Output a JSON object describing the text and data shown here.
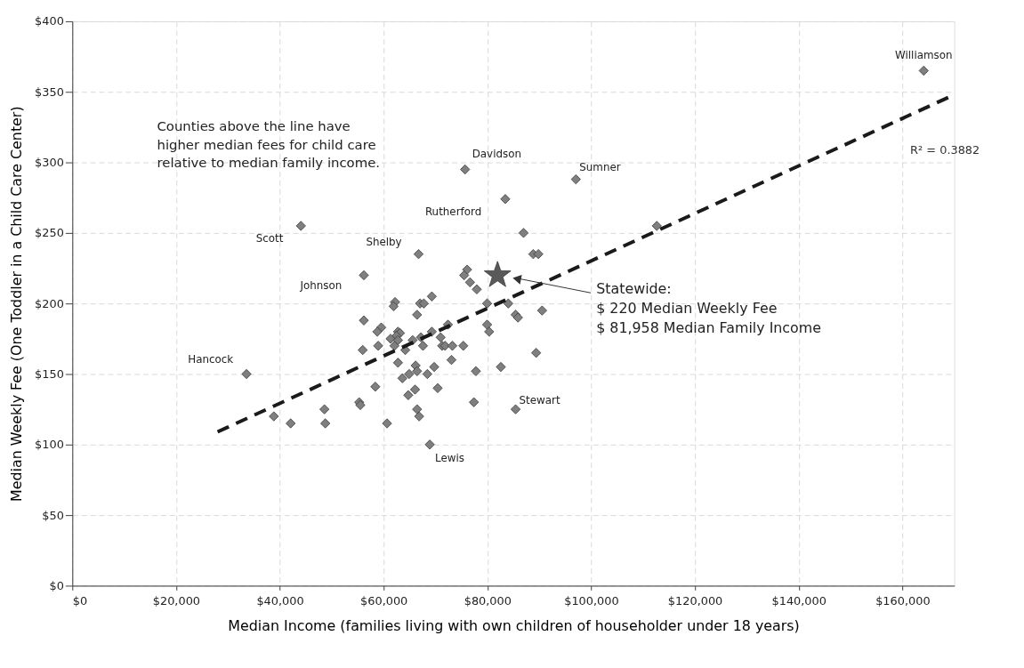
{
  "chart_data": {
    "type": "scatter",
    "xlabel": "Median Income (families living with own children of householder under 18 years)",
    "ylabel": "Median Weekly Fee  (One Toddler in a Child Care Center)",
    "xlim": [
      0,
      170000
    ],
    "ylim": [
      0,
      400
    ],
    "xticks": [
      {
        "value": 0,
        "label": "$0"
      },
      {
        "value": 20000,
        "label": "$20,000"
      },
      {
        "value": 40000,
        "label": "$40,000"
      },
      {
        "value": 60000,
        "label": "$60,000"
      },
      {
        "value": 80000,
        "label": "$80,000"
      },
      {
        "value": 100000,
        "label": "$100,000"
      },
      {
        "value": 120000,
        "label": "$120,000"
      },
      {
        "value": 140000,
        "label": "$140,000"
      },
      {
        "value": 160000,
        "label": "$160,000"
      }
    ],
    "yticks": [
      {
        "value": 0,
        "label": "$0"
      },
      {
        "value": 50,
        "label": "$50"
      },
      {
        "value": 100,
        "label": "$100"
      },
      {
        "value": 150,
        "label": "$150"
      },
      {
        "value": 200,
        "label": "$200"
      },
      {
        "value": 250,
        "label": "$250"
      },
      {
        "value": 300,
        "label": "$300"
      },
      {
        "value": 350,
        "label": "$350"
      },
      {
        "value": 400,
        "label": "$400"
      }
    ],
    "grid": true,
    "series": [
      {
        "type": "scatter",
        "marker": "diamond",
        "color": "#7f7f7f",
        "x": [
          164100,
          75700,
          97060,
          83450,
          44060,
          86970,
          66740,
          88840,
          89830,
          56190,
          76090,
          75520,
          76650,
          77960,
          79950,
          84030,
          85440,
          85900,
          62200,
          61920,
          67020,
          67750,
          69290,
          66450,
          56190,
          79950,
          80340,
          59540,
          58790,
          72400,
          69290,
          62770,
          63160,
          62480,
          61340,
          62770,
          70990,
          65600,
          67190,
          71280,
          71840,
          73250,
          75360,
          67590,
          58960,
          55970,
          62090,
          64180,
          89400,
          73080,
          62770,
          82600,
          69750,
          66170,
          66450,
          64920,
          63620,
          68430,
          77790,
          33570,
          58400,
          70420,
          66060,
          64750,
          55290,
          55510,
          77400,
          85440,
          66450,
          66850,
          48590,
          38840,
          42080,
          48760,
          60660,
          68900,
          112650,
          90550
        ],
        "values": [
          365,
          295,
          288,
          274,
          255,
          250,
          235,
          235,
          235,
          220,
          224,
          220,
          215,
          210,
          200,
          200,
          192,
          190,
          201,
          198,
          200,
          200,
          205,
          192,
          188,
          185,
          180,
          183,
          180,
          185,
          180,
          180,
          179,
          177,
          175,
          174,
          176,
          174,
          176,
          170,
          170,
          170,
          170,
          170,
          170,
          167,
          170,
          167,
          165,
          160,
          158,
          155,
          155,
          156,
          152,
          150,
          147,
          150,
          152,
          150,
          141,
          140,
          139,
          135,
          130,
          128,
          130,
          125,
          125,
          120,
          125,
          120,
          115,
          115,
          115,
          100,
          255,
          195
        ]
      },
      {
        "type": "scatter",
        "marker": "star",
        "color": "#595959",
        "x": [
          81958
        ],
        "values": [
          220
        ]
      },
      {
        "type": "line",
        "line_style": "dashed",
        "color": "#1a1a1a",
        "x": [
          28000,
          170000
        ],
        "values": [
          109,
          348
        ]
      }
    ],
    "annotations": [
      {
        "text": "Williamson",
        "x": 164100,
        "y": 365
      },
      {
        "text": "Davidson",
        "x": 75700,
        "y": 295
      },
      {
        "text": "Sumner",
        "x": 97060,
        "y": 288
      },
      {
        "text": "Rutherford",
        "x": 83450,
        "y": 274
      },
      {
        "text": "Scott",
        "x": 44060,
        "y": 255
      },
      {
        "text": "Shelby",
        "x": 66740,
        "y": 235
      },
      {
        "text": "Johnson",
        "x": 56190,
        "y": 220
      },
      {
        "text": "Hancock",
        "x": 33570,
        "y": 150
      },
      {
        "text": "Stewart",
        "x": 85440,
        "y": 125
      },
      {
        "text": "Lewis",
        "x": 68900,
        "y": 100
      },
      "Statewide:\n$ 220  Median Weekly Fee\n$ 81,958  Median Family Income",
      "Counties above the line have\nhigher median fees for child care\nrelative to median family income.",
      "R² = 0.3882"
    ]
  }
}
